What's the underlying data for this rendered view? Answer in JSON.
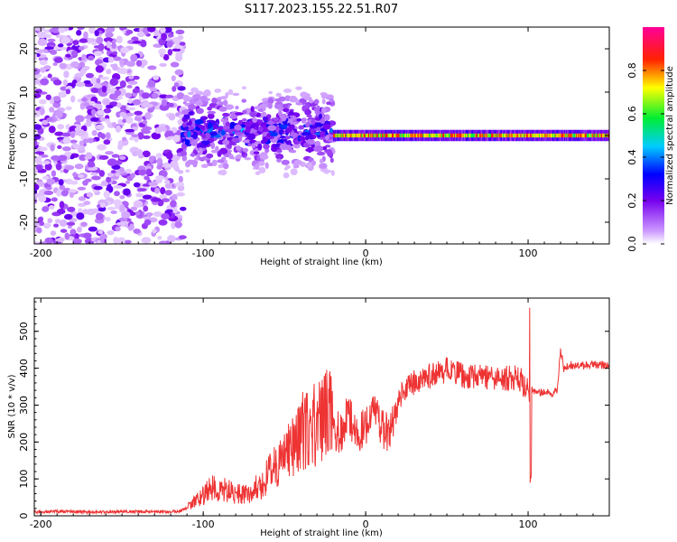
{
  "title": "S117.2023.155.22.51.R07",
  "colors": {
    "snr_line": "#ee3333",
    "frame": "#000000",
    "colorscale": [
      "#ffffff",
      "#9966ee",
      "#0000ff",
      "#00ccff",
      "#00ee44",
      "#ffee00",
      "#ff0000",
      "#ff0099"
    ]
  },
  "chart_data": [
    {
      "type": "heatmap",
      "name": "spectrogram",
      "xlabel": "Height of straight line (km)",
      "ylabel": "Frequency (Hz)",
      "xlim": [
        -204,
        150
      ],
      "ylim": [
        -25,
        25
      ],
      "x_ticks": [
        -200,
        -100,
        0,
        100
      ],
      "y_ticks": [
        20,
        10,
        0,
        -10,
        -20
      ],
      "colorbar": {
        "label": "Normalized spectral amplitude",
        "range": [
          0,
          1
        ],
        "ticks": [
          "0.0",
          "0.2",
          "0.4",
          "0.6",
          "0.8"
        ],
        "tick_values": [
          0,
          0.2,
          0.4,
          0.6,
          0.8
        ]
      },
      "regions": [
        {
          "x": [
            -204,
            -112
          ],
          "freq": [
            -25,
            25
          ],
          "amplitude": "low, scattered noise"
        },
        {
          "x": [
            -112,
            -20
          ],
          "freq": [
            -8,
            10
          ],
          "amplitude": "moderate, scattered"
        },
        {
          "x": [
            -20,
            150
          ],
          "freq": [
            -1,
            1
          ],
          "amplitude": "high, narrow line at 0 Hz"
        }
      ]
    },
    {
      "type": "line",
      "name": "snr",
      "xlabel": "Height of straight line (km)",
      "ylabel": "SNR (10 * v/v)",
      "xlim": [
        -204,
        150
      ],
      "ylim": [
        0,
        590
      ],
      "x_ticks": [
        -200,
        -100,
        0,
        100
      ],
      "y_ticks": [
        0,
        100,
        200,
        300,
        400,
        500
      ],
      "x": [
        -204,
        -190,
        -170,
        -150,
        -130,
        -115,
        -105,
        -95,
        -85,
        -75,
        -65,
        -55,
        -45,
        -35,
        -25,
        -15,
        -10,
        -5,
        0,
        5,
        10,
        15,
        20,
        25,
        30,
        40,
        50,
        60,
        70,
        80,
        90,
        95,
        100,
        101,
        102,
        105,
        110,
        115,
        118,
        120,
        122,
        125,
        130,
        140,
        150
      ],
      "y": [
        10,
        12,
        10,
        12,
        11,
        12,
        30,
        60,
        55,
        45,
        65,
        110,
        160,
        200,
        220,
        230,
        280,
        210,
        240,
        280,
        250,
        210,
        320,
        340,
        360,
        380,
        395,
        380,
        380,
        370,
        375,
        370,
        340,
        310,
        340,
        335,
        335,
        330,
        340,
        450,
        400,
        410,
        405,
        410,
        408
      ]
    }
  ]
}
